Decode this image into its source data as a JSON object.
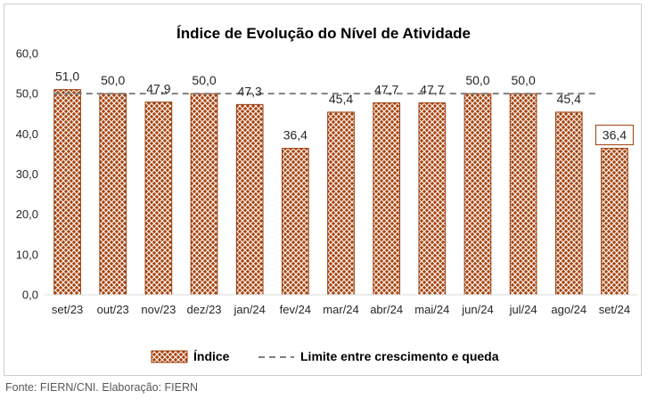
{
  "chart_data": {
    "type": "bar",
    "title": "Índice de Evolução do Nível de Atividade",
    "categories": [
      "set/23",
      "out/23",
      "nov/23",
      "dez/23",
      "jan/24",
      "fev/24",
      "mar/24",
      "abr/24",
      "mai/24",
      "jun/24",
      "jul/24",
      "ago/24",
      "set/24"
    ],
    "series": [
      {
        "name": "Índice",
        "values": [
          51.0,
          50.0,
          47.9,
          50.0,
          47.3,
          36.4,
          45.4,
          47.7,
          47.7,
          50.0,
          50.0,
          45.4,
          36.4
        ],
        "labels": [
          "51,0",
          "50,0",
          "47,9",
          "50,0",
          "47,3",
          "36,4",
          "45,4",
          "47,7",
          "47,7",
          "50,0",
          "50,0",
          "45,4",
          "36,4"
        ],
        "color": "#9c3a06",
        "pattern": "diagonal-cross-hatch"
      },
      {
        "name": "Limite entre crescimento e queda",
        "type": "line",
        "style": "dashed",
        "value": 50.0,
        "color": "#808080"
      }
    ],
    "ylim": [
      0,
      60
    ],
    "yticks": [
      0,
      10,
      20,
      30,
      40,
      50,
      60
    ],
    "ytick_labels": [
      "0,0",
      "10,0",
      "20,0",
      "30,0",
      "40,0",
      "50,0",
      "60,0"
    ],
    "xlabel": "",
    "ylabel": "",
    "grid": false,
    "legend": "bottom",
    "highlighted_label_index": 12
  },
  "source_note": "Fonte: FIERN/CNI. Elaboração: FIERN"
}
